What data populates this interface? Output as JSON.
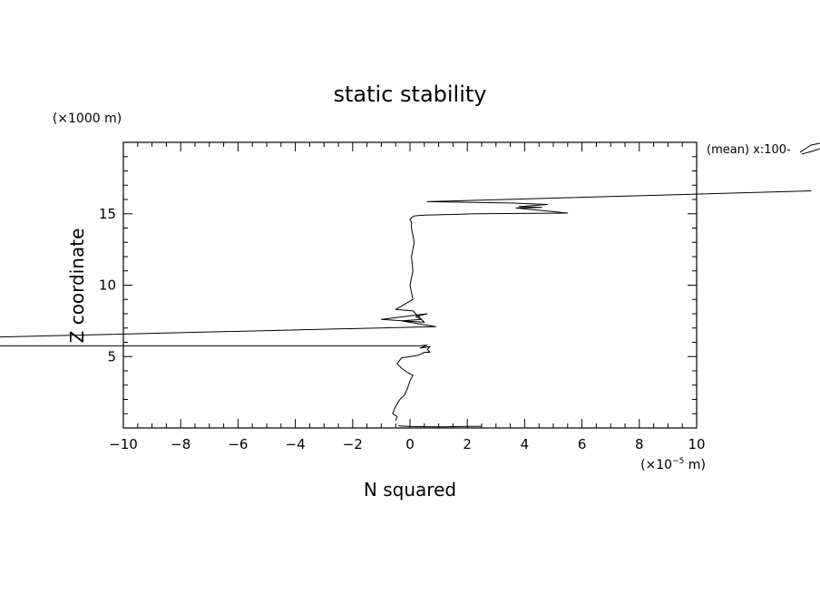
{
  "chart_data": {
    "type": "line",
    "title": "static stability",
    "xlabel": "N squared",
    "ylabel": "Z coordinate",
    "x_unit_label": "(×10",
    "x_unit_exp": "−5",
    "x_unit_suffix": " m)",
    "y_unit_label": "(×1000 m)",
    "annotation": "(mean) x:100-",
    "xlim": [
      -10,
      10
    ],
    "ylim": [
      0,
      20
    ],
    "x_ticks": [
      {
        "v": -10,
        "label": "−10"
      },
      {
        "v": -8,
        "label": "−8"
      },
      {
        "v": -6,
        "label": "−6"
      },
      {
        "v": -4,
        "label": "−4"
      },
      {
        "v": -2,
        "label": "−2"
      },
      {
        "v": 0,
        "label": "0"
      },
      {
        "v": 2,
        "label": "2"
      },
      {
        "v": 4,
        "label": "4"
      },
      {
        "v": 6,
        "label": "6"
      },
      {
        "v": 8,
        "label": "8"
      },
      {
        "v": 10,
        "label": "10"
      }
    ],
    "y_ticks": [
      {
        "v": 5,
        "label": "5"
      },
      {
        "v": 10,
        "label": "10"
      },
      {
        "v": 15,
        "label": "15"
      }
    ],
    "grid": false,
    "series": [
      {
        "x": [
          -0.5,
          -0.45,
          -0.6,
          -0.55,
          -0.45,
          -0.35,
          -0.2,
          -0.1,
          -0.05,
          0.0,
          0.1,
          -0.1,
          -0.3,
          -0.45,
          -0.3,
          0.0,
          0.3,
          0.5,
          0.7,
          0.6,
          0.7,
          0.35,
          0.6,
          0.3,
          -20.0,
          -20.0,
          0.9,
          0.3,
          -0.3,
          0.4,
          0.2,
          0.6,
          -1.0,
          0.5,
          0.1,
          -0.5,
          0.1,
          0.0,
          0.1,
          0.05,
          0.15,
          0.05,
          0.05,
          0.0,
          0.1,
          0.15,
          0.5,
          2.3,
          5.5,
          3.7,
          4.6,
          3.8,
          4.8,
          3.5,
          0.6,
          14.0
        ],
        "y": [
          0.5,
          0.8,
          1.0,
          1.3,
          1.7,
          2.0,
          2.3,
          2.7,
          3.0,
          3.3,
          3.7,
          3.9,
          4.2,
          4.5,
          4.9,
          5.0,
          5.1,
          5.3,
          5.3,
          5.5,
          5.7,
          5.6,
          5.8,
          5.75,
          5.75,
          6.1,
          7.1,
          7.3,
          7.5,
          7.6,
          7.8,
          8.0,
          7.6,
          7.4,
          8.2,
          8.3,
          9.0,
          10.0,
          11.0,
          12.0,
          13.0,
          14.0,
          14.4,
          14.6,
          14.8,
          14.85,
          14.9,
          15.0,
          15.05,
          15.4,
          15.45,
          15.5,
          15.65,
          15.75,
          15.85,
          16.6
        ]
      },
      {
        "x": [
          -0.4,
          0.0,
          1.0,
          2.5,
          1.0,
          0.0
        ],
        "y": [
          0.15,
          0.1,
          0.08,
          0.12,
          0.08,
          0.1
        ]
      }
    ]
  }
}
